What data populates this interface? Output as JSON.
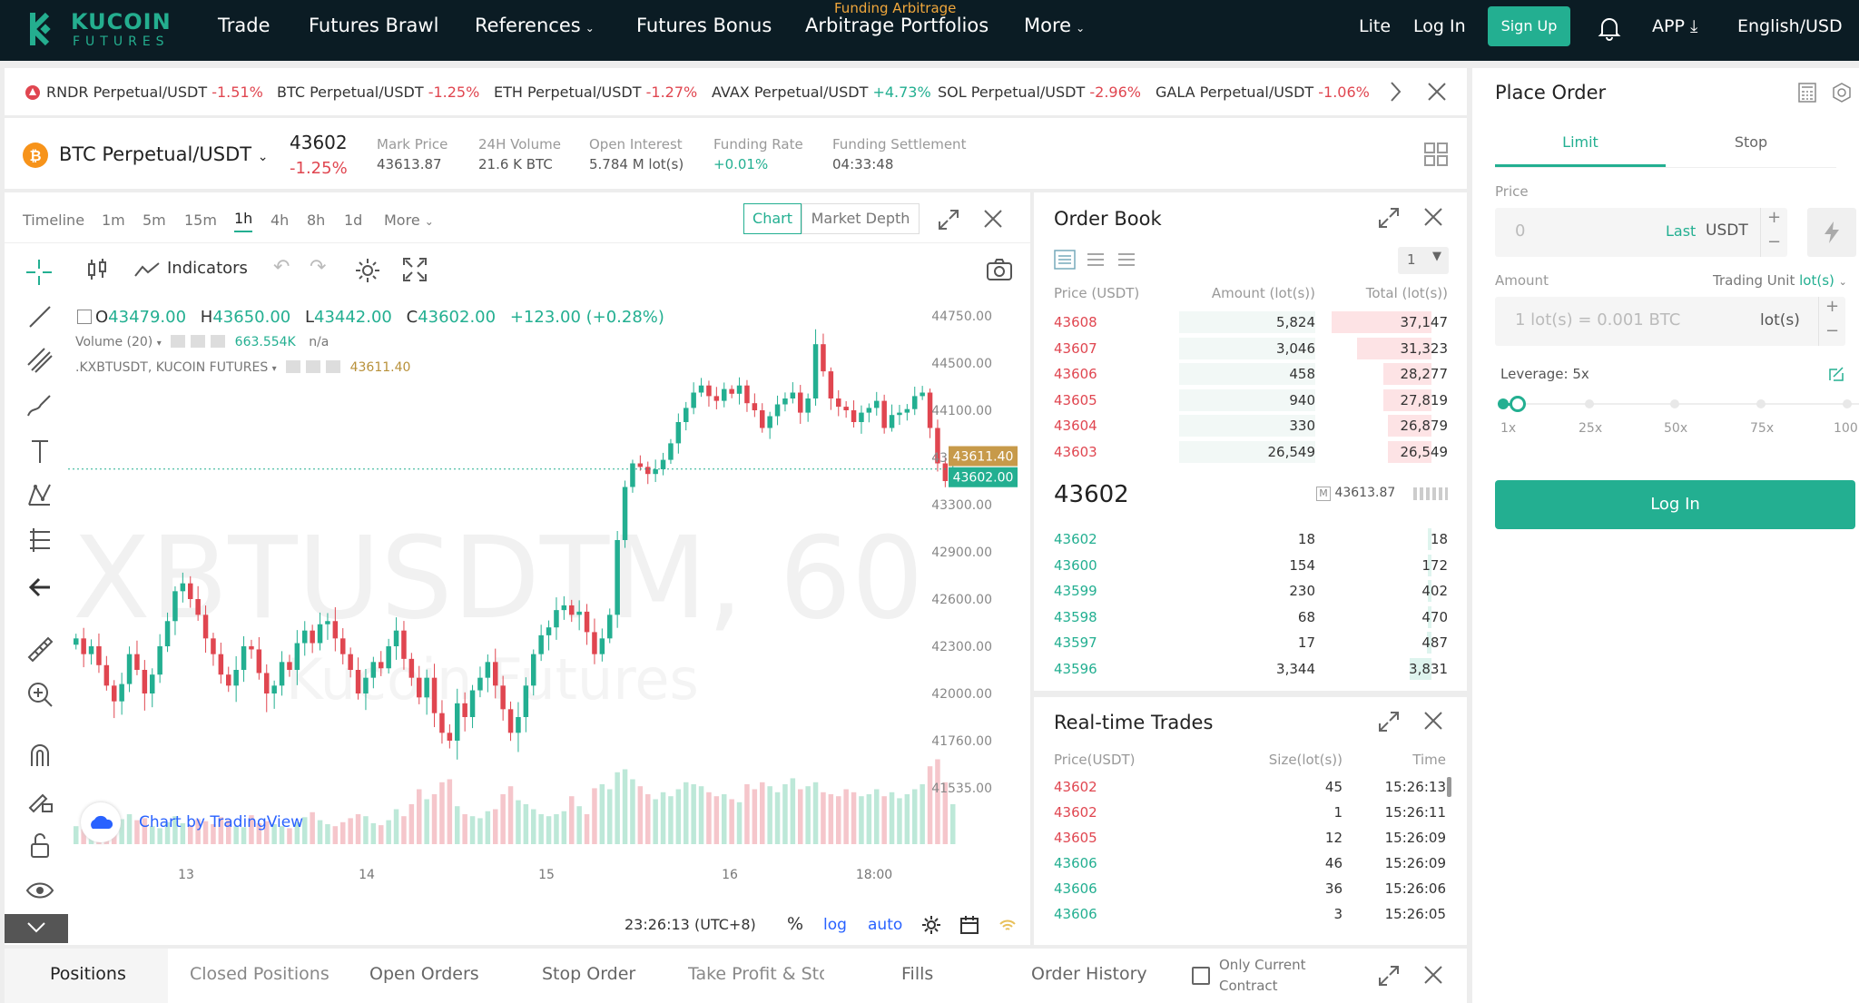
{
  "brand": {
    "name": "KUCOIN",
    "sub": "FUTURES"
  },
  "nav": {
    "trade": "Trade",
    "futures_brawl": "Futures Brawl",
    "references": "References",
    "futures_bonus": "Futures Bonus",
    "arbitrage_sup": "Funding Arbitrage",
    "arbitrage": "Arbitrage Portfolios",
    "more": "More",
    "lite": "Lite",
    "login": "Log In",
    "signup": "Sign Up",
    "app": "APP",
    "lang": "English/USD"
  },
  "ticker": [
    {
      "name": "RNDR Perpetual/USDT",
      "change": "-1.51%",
      "dir": "neg"
    },
    {
      "name": "BTC Perpetual/USDT",
      "change": "-1.25%",
      "dir": "neg"
    },
    {
      "name": "ETH Perpetual/USDT",
      "change": "-1.27%",
      "dir": "neg"
    },
    {
      "name": "AVAX Perpetual/USDT",
      "change": "+4.73%",
      "dir": "pos"
    },
    {
      "name": "SOL Perpetual/USDT",
      "change": "-2.96%",
      "dir": "neg"
    },
    {
      "name": "GALA Perpetual/USDT",
      "change": "-1.06%",
      "dir": "neg"
    }
  ],
  "instrument": {
    "symbol": "BTC Perpetual/USDT",
    "last": "43602",
    "change": "-1.25%",
    "stats": [
      {
        "label": "Mark Price",
        "value": "43613.87"
      },
      {
        "label": "24H Volume",
        "value": "21.6 K BTC"
      },
      {
        "label": "Open Interest",
        "value": "5.784 M lot(s)"
      },
      {
        "label": "Funding Rate",
        "value": "+0.01%"
      },
      {
        "label": "Funding Settlement",
        "value": "04:33:48"
      }
    ]
  },
  "chart_toolbar": {
    "intervals": [
      "Timeline",
      "1m",
      "5m",
      "15m",
      "1h",
      "4h",
      "8h",
      "1d",
      "More"
    ],
    "active_interval": "1h",
    "view_chart": "Chart",
    "view_depth": "Market Depth",
    "indicators": "Indicators"
  },
  "chart_legend": {
    "o": "43479.00",
    "h": "43650.00",
    "l": "43442.00",
    "c": "43602.00",
    "chg": "+123.00 (+0.28%)",
    "volume_label": "Volume (20)",
    "volume_value": "663.554K",
    "volume_na": "n/a",
    "index_label": ".KXBTUSDT, KUCOIN FUTURES",
    "index_value": "43611.40",
    "watermark": "XBTUSDTM, 60",
    "watermark2": "Kucoin Futures",
    "credit": "Chart by TradingView",
    "time": "23:26:13 (UTC+8)",
    "pct": "%",
    "log": "log",
    "auto": "auto"
  },
  "chart_data": {
    "type": "candlestick",
    "symbol": "XBTUSDTM",
    "interval": "60",
    "y_ticks": [
      44750,
      44500,
      44100,
      43700,
      43300,
      42900,
      42600,
      42300,
      42000,
      41760,
      41535
    ],
    "x_ticks": [
      "13",
      "14",
      "15",
      "16",
      "18:00"
    ],
    "price_tags": [
      {
        "label": "43611.40",
        "kind": "index"
      },
      {
        "label": "43602.00",
        "kind": "last"
      }
    ],
    "close": [
      42350,
      42250,
      42300,
      42180,
      42050,
      41960,
      42060,
      42250,
      42150,
      42000,
      42120,
      42300,
      42460,
      42650,
      42700,
      42600,
      42500,
      42350,
      42250,
      42120,
      42050,
      42150,
      42300,
      42280,
      42130,
      42000,
      42050,
      42200,
      42150,
      42320,
      42400,
      42320,
      42440,
      42460,
      42350,
      42250,
      42150,
      42000,
      42100,
      42200,
      42160,
      42300,
      42400,
      42220,
      42100,
      41980,
      42100,
      41900,
      41800,
      41760,
      41950,
      41880,
      42020,
      42100,
      42200,
      42050,
      41920,
      41800,
      41880,
      42050,
      42250,
      42370,
      42420,
      42530,
      42560,
      42500,
      42520,
      42390,
      42250,
      42350,
      42500,
      43000,
      43450,
      43650,
      43620,
      43560,
      43600,
      43680,
      43820,
      44000,
      44120,
      44250,
      44310,
      44220,
      44180,
      44280,
      44240,
      44310,
      44160,
      44100,
      43950,
      44050,
      44150,
      44200,
      44250,
      44080,
      44200,
      44600,
      44430,
      44200,
      44130,
      44100,
      44000,
      44080,
      44120,
      44180,
      43950,
      44060,
      44080,
      44110,
      44220,
      44250,
      43950,
      43650,
      43500,
      43602
    ],
    "volume_level": [
      0.18,
      0.15,
      0.16,
      0.14,
      0.2,
      0.22,
      0.25,
      0.3,
      0.24,
      0.26,
      0.18,
      0.16,
      0.22,
      0.28,
      0.21,
      0.19,
      0.25,
      0.23,
      0.2,
      0.27,
      0.24,
      0.18,
      0.17,
      0.29,
      0.21,
      0.23,
      0.2,
      0.18,
      0.16,
      0.22,
      0.27,
      0.32,
      0.24,
      0.2,
      0.18,
      0.22,
      0.26,
      0.3,
      0.28,
      0.21,
      0.19,
      0.24,
      0.35,
      0.28,
      0.4,
      0.55,
      0.45,
      0.5,
      0.62,
      0.65,
      0.38,
      0.3,
      0.28,
      0.26,
      0.33,
      0.35,
      0.5,
      0.58,
      0.44,
      0.4,
      0.35,
      0.3,
      0.28,
      0.3,
      0.33,
      0.48,
      0.38,
      0.3,
      0.56,
      0.6,
      0.55,
      0.72,
      0.75,
      0.65,
      0.58,
      0.5,
      0.45,
      0.52,
      0.48,
      0.55,
      0.62,
      0.6,
      0.58,
      0.52,
      0.48,
      0.5,
      0.45,
      0.42,
      0.6,
      0.55,
      0.62,
      0.58,
      0.52,
      0.6,
      0.66,
      0.55,
      0.58,
      0.62,
      0.52,
      0.5,
      0.48,
      0.55,
      0.52,
      0.48,
      0.5,
      0.55,
      0.48,
      0.52,
      0.46,
      0.5,
      0.55,
      0.6,
      0.78,
      0.85,
      0.62,
      0.4
    ]
  },
  "order_book": {
    "title": "Order Book",
    "precision": "1",
    "headers": [
      "Price (USDT)",
      "Amount (lot(s))",
      "Total (lot(s))"
    ],
    "asks": [
      {
        "price": "43608",
        "amount": "5,824",
        "total": "37,147",
        "depth": 0.46
      },
      {
        "price": "43607",
        "amount": "3,046",
        "total": "31,323",
        "depth": 0.34
      },
      {
        "price": "43606",
        "amount": "458",
        "total": "28,277",
        "depth": 0.22
      },
      {
        "price": "43605",
        "amount": "940",
        "total": "27,819",
        "depth": 0.22
      },
      {
        "price": "43604",
        "amount": "330",
        "total": "26,879",
        "depth": 0.2
      },
      {
        "price": "43603",
        "amount": "26,549",
        "total": "26,549",
        "depth": 0.2
      }
    ],
    "mid_price": "43602",
    "mark_price": "43613.87",
    "bids": [
      {
        "price": "43602",
        "amount": "18",
        "total": "18",
        "depth": 0.005
      },
      {
        "price": "43600",
        "amount": "154",
        "total": "172",
        "depth": 0.01
      },
      {
        "price": "43599",
        "amount": "230",
        "total": "402",
        "depth": 0.015
      },
      {
        "price": "43598",
        "amount": "68",
        "total": "470",
        "depth": 0.018
      },
      {
        "price": "43597",
        "amount": "17",
        "total": "487",
        "depth": 0.02
      },
      {
        "price": "43596",
        "amount": "3,344",
        "total": "3,831",
        "depth": 0.1
      }
    ]
  },
  "trades": {
    "title": "Real-time Trades",
    "headers": [
      "Price(USDT)",
      "Size(lot(s))",
      "Time"
    ],
    "rows": [
      {
        "price": "43602",
        "size": "45",
        "time": "15:26:13",
        "dir": "neg"
      },
      {
        "price": "43602",
        "size": "1",
        "time": "15:26:11",
        "dir": "neg"
      },
      {
        "price": "43605",
        "size": "12",
        "time": "15:26:09",
        "dir": "neg"
      },
      {
        "price": "43606",
        "size": "46",
        "time": "15:26:09",
        "dir": "pos"
      },
      {
        "price": "43606",
        "size": "36",
        "time": "15:26:06",
        "dir": "pos"
      },
      {
        "price": "43606",
        "size": "3",
        "time": "15:26:05",
        "dir": "pos"
      }
    ]
  },
  "place_order": {
    "title": "Place Order",
    "tab_limit": "Limit",
    "tab_stop": "Stop",
    "price_label": "Price",
    "price_placeholder": "0",
    "price_last": "Last",
    "price_unit": "USDT",
    "amount_label": "Amount",
    "trading_unit": "Trading Unit",
    "trading_unit_value": "lot(s)",
    "amount_placeholder": "1 lot(s) = 0.001 BTC",
    "amount_unit": "lot(s)",
    "leverage_label": "Leverage: 5x",
    "leverage_marks": [
      "1x",
      "25x",
      "50x",
      "75x",
      "100"
    ],
    "login_button": "Log In"
  },
  "bottom_tabs": {
    "positions": "Positions",
    "closed": "Closed Positions",
    "open_orders": "Open Orders",
    "stop_order": "Stop Order",
    "tp_sl": "Take Profit & Stop",
    "fills": "Fills",
    "history": "Order History",
    "only_current": "Only Current",
    "contract": "Contract"
  },
  "colors": {
    "up": "#23af91",
    "down": "#e04650",
    "accent": "#23af91",
    "nav_bg": "#0b1c24",
    "index_tag": "#c79a4a"
  }
}
